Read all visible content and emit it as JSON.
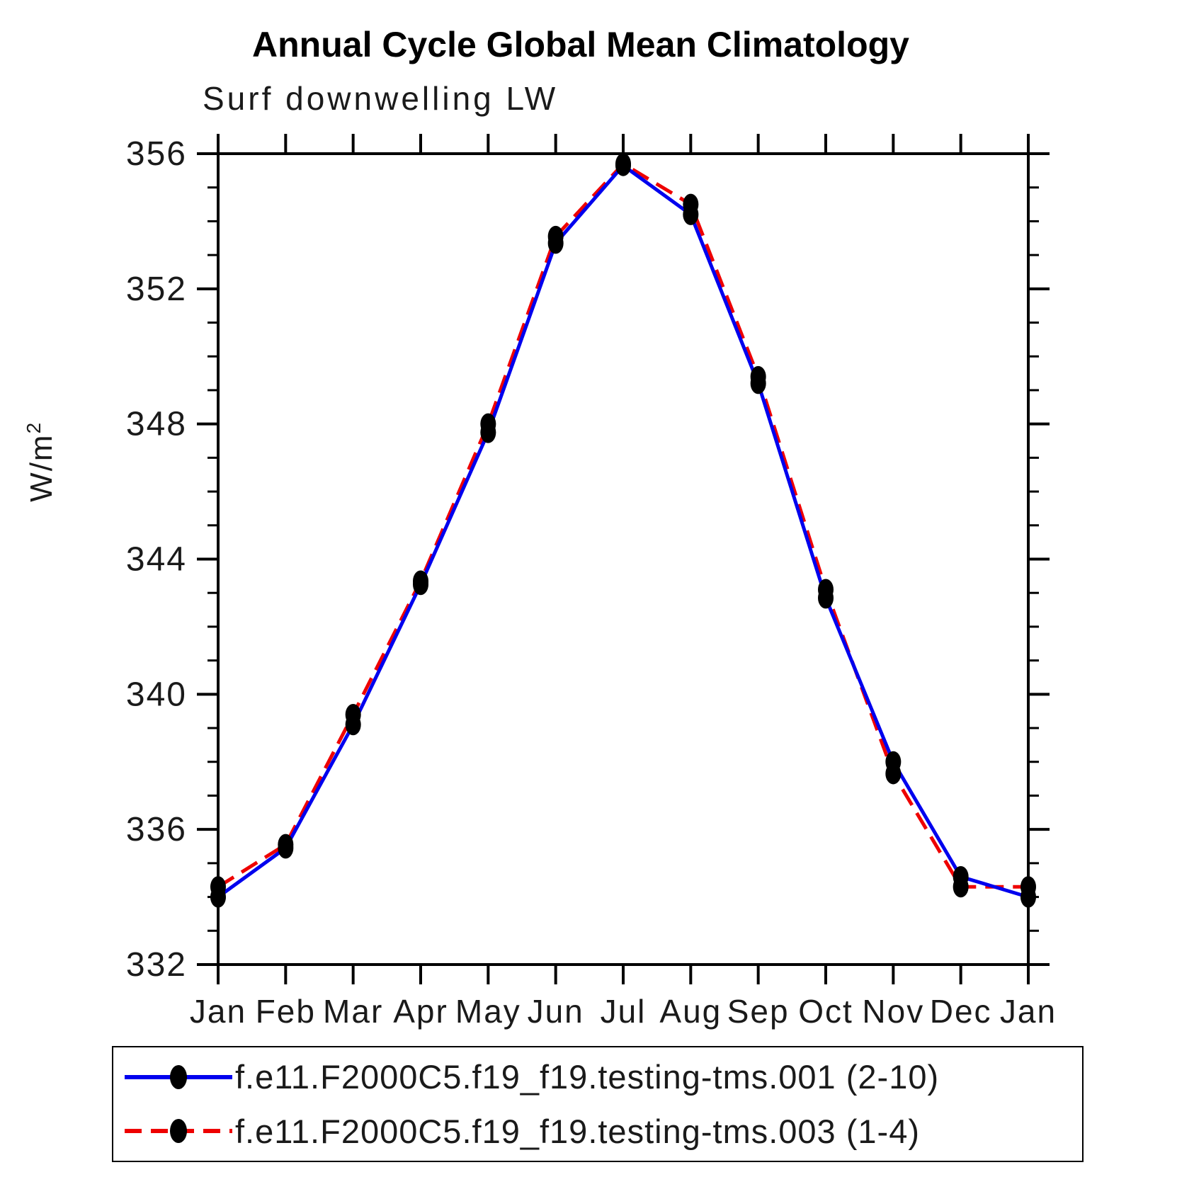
{
  "title": "Annual Cycle Global Mean Climatology",
  "chart_data": {
    "type": "line",
    "title": "Annual Cycle Global Mean Climatology",
    "subtitle": "Surf downwelling LW",
    "ylabel": "W/m²",
    "xlabel": "",
    "categories": [
      "Jan",
      "Feb",
      "Mar",
      "Apr",
      "May",
      "Jun",
      "Jul",
      "Aug",
      "Sep",
      "Oct",
      "Nov",
      "Dec",
      "Jan"
    ],
    "ylim": [
      332,
      356
    ],
    "ytick_major_step": 4,
    "ytick_minor_step": 1,
    "grid": false,
    "legend_position": "bottom",
    "marker": "black-filled-dot",
    "series": [
      {
        "name": "f.e11.F2000C5.f19_f19.testing-tms.001 (2-10)",
        "color": "#0000ee",
        "style": "solid",
        "values": [
          334.0,
          335.45,
          339.1,
          343.25,
          347.75,
          353.35,
          355.65,
          354.2,
          349.2,
          342.85,
          338.0,
          334.6,
          334.0
        ]
      },
      {
        "name": "f.e11.F2000C5.f19_f19.testing-tms.003 (1-4)",
        "color": "#ee0000",
        "style": "dashed",
        "values": [
          334.3,
          335.55,
          339.4,
          343.35,
          348.0,
          353.55,
          355.7,
          354.5,
          349.4,
          343.1,
          337.65,
          334.3,
          334.3
        ]
      }
    ]
  },
  "colors": {
    "background": "#ffffff",
    "axis": "#000000",
    "marker": "#000000",
    "series_blue": "#0000ee",
    "series_red": "#ee0000"
  }
}
